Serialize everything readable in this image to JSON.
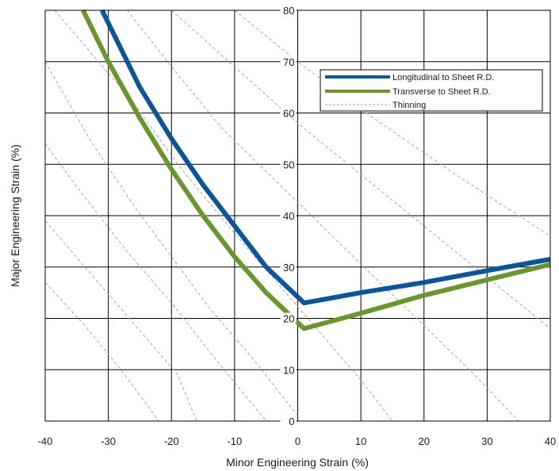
{
  "chart_data": {
    "type": "line",
    "xlabel": "Minor Engineering Strain (%)",
    "ylabel": "Major Engineering Strain (%)",
    "xlim": [
      -40,
      40
    ],
    "ylim": [
      0,
      80
    ],
    "x_ticks": [
      "-40",
      "-30",
      "-20",
      "-10",
      "0",
      "10",
      "20",
      "30",
      "40"
    ],
    "y_ticks": [
      "0",
      "10",
      "20",
      "30",
      "40",
      "50",
      "60",
      "70",
      "80"
    ],
    "grid": true,
    "legend_position": "top-right",
    "series": [
      {
        "name": "Longitudinal to Sheet R.D.",
        "color": "#0e5596",
        "style": "solid",
        "points": [
          [
            -31,
            80
          ],
          [
            -25,
            65
          ],
          [
            -20,
            55
          ],
          [
            -15,
            46
          ],
          [
            -10,
            38
          ],
          [
            -5,
            30
          ],
          [
            1,
            23
          ],
          [
            10,
            25
          ],
          [
            20,
            27
          ],
          [
            30,
            29.3
          ],
          [
            40,
            31.5
          ]
        ]
      },
      {
        "name": "Transverse to Sheet R.D.",
        "color": "#6b9530",
        "style": "solid",
        "points": [
          [
            -34,
            80
          ],
          [
            -30,
            70
          ],
          [
            -25,
            59
          ],
          [
            -20,
            49
          ],
          [
            -15,
            40
          ],
          [
            -10,
            32
          ],
          [
            -5,
            25
          ],
          [
            1,
            18
          ],
          [
            10,
            21
          ],
          [
            20,
            24.5
          ],
          [
            30,
            27.5
          ],
          [
            40,
            30.5
          ]
        ]
      },
      {
        "name": "Thinning",
        "color": "#a6a6a6",
        "style": "dashed",
        "lines": [
          [
            [
              -38.5,
              80
            ],
            [
              -26,
              62
            ],
            [
              -19,
              50
            ],
            [
              -11,
              38
            ],
            [
              -4,
              28
            ],
            [
              3,
              18
            ],
            [
              10,
              8
            ],
            [
              15,
              0
            ]
          ],
          [
            [
              -27,
              80
            ],
            [
              -20,
              69
            ],
            [
              -12,
              57
            ],
            [
              -2,
              45
            ],
            [
              8,
              33
            ],
            [
              18,
              21
            ],
            [
              28,
              9
            ],
            [
              35,
              0
            ]
          ],
          [
            [
              -20,
              80
            ],
            [
              -10,
              69
            ],
            [
              0,
              58
            ],
            [
              12,
              46
            ],
            [
              24,
              34
            ],
            [
              36,
              22
            ],
            [
              40,
              18
            ]
          ],
          [
            [
              -10,
              80
            ],
            [
              0,
              70
            ],
            [
              12,
              59
            ],
            [
              25,
              48
            ],
            [
              40,
              36
            ]
          ],
          [
            [
              -40,
              70
            ],
            [
              -33,
              55
            ],
            [
              -26,
              42
            ],
            [
              -20,
              32
            ],
            [
              -14,
              22
            ],
            [
              -7,
              12
            ],
            [
              0,
              1
            ]
          ],
          [
            [
              -40,
              54
            ],
            [
              -34,
              44
            ],
            [
              -27,
              33
            ],
            [
              -20,
              23
            ],
            [
              -13,
              12
            ],
            [
              -7,
              3
            ],
            [
              -5,
              0
            ]
          ],
          [
            [
              -40,
              39
            ],
            [
              -33,
              29
            ],
            [
              -26,
              19
            ],
            [
              -19,
              9
            ],
            [
              -16,
              0
            ]
          ],
          [
            [
              -40,
              27
            ],
            [
              -34,
              19
            ],
            [
              -28,
              10
            ],
            [
              -22,
              0
            ]
          ]
        ]
      }
    ]
  }
}
